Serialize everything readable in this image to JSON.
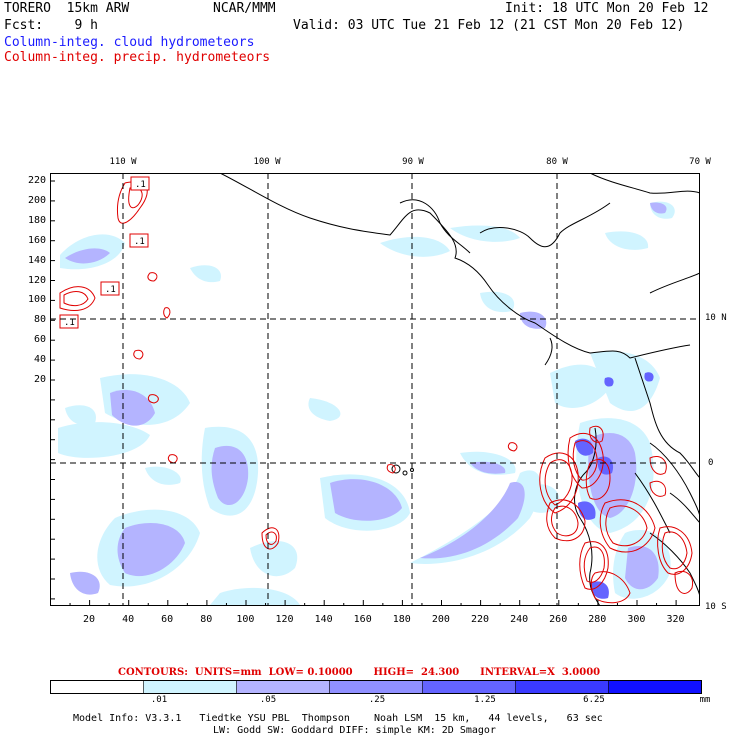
{
  "header": {
    "model": "TORERO  15km ARW",
    "org": "NCAR/MMM",
    "init": "Init: 18 UTC Mon 20 Feb 12",
    "fcst": "Fcst:    9 h",
    "valid": "Valid: 03 UTC Tue 21 Feb 12 (21 CST Mon 20 Feb 12)",
    "field1": "Column-integ. cloud hydrometeors",
    "field2": "Column-integ. precip. hydrometeors"
  },
  "axes": {
    "top_lon": [
      "110 W",
      "100 W",
      "90 W",
      "80 W",
      "70 W"
    ],
    "right_lat": [
      "10 N",
      "0",
      "10 S"
    ],
    "left_ticks": [
      "220",
      "200",
      "180",
      "160",
      "140",
      "120",
      "100",
      "80",
      "60",
      "40",
      "20"
    ],
    "bottom_ticks": [
      "20",
      "40",
      "60",
      "80",
      "100",
      "120",
      "140",
      "160",
      "180",
      "200",
      "220",
      "240",
      "260",
      "280",
      "300",
      "320"
    ]
  },
  "contour_labels": [
    ".1",
    ".1",
    ".1",
    ".1"
  ],
  "contour_info": "CONTOURS:  UNITS=mm  LOW= 0.10000      HIGH=  24.300      INTERVAL=X  3.0000",
  "colorbar": {
    "labels": [
      ".01",
      ".05",
      ".25",
      "1.25",
      "6.25"
    ],
    "unit": "mm",
    "colors": [
      "#ffffff",
      "#d0f4ff",
      "#b4b4ff",
      "#9090ff",
      "#6464ff",
      "#3a3aff",
      "#1010ff"
    ]
  },
  "footer": {
    "line1": "Model Info: V3.3.1   Tiedtke YSU PBL  Thompson    Noah LSM  15 km,   44 levels,   63 sec",
    "line2": "LW: Godd SW: Goddard DIFF: simple KM: 2D Smagor"
  }
}
